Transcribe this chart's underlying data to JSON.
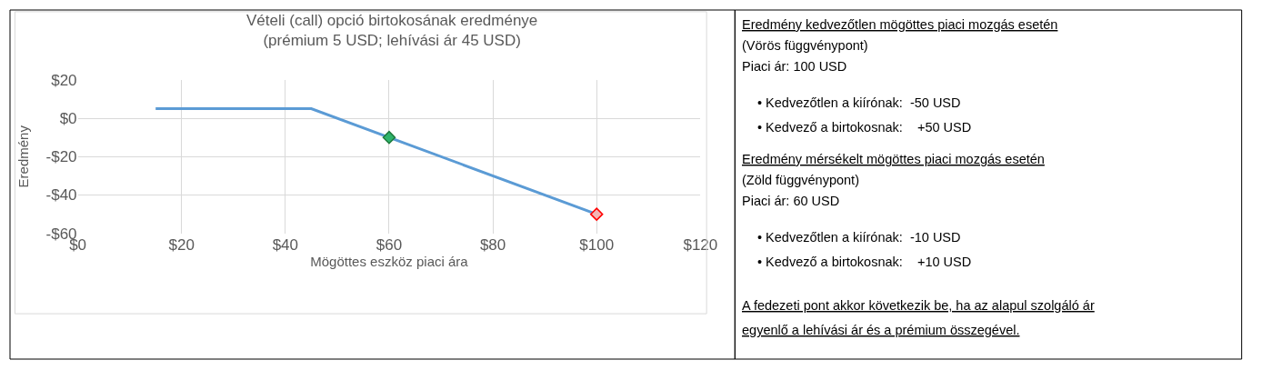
{
  "chart_data": [
    {
      "type": "line",
      "title": "Vételi (call) opció birtokosának eredménye\n(prémium 5 USD; lehívási ár 45 USD)",
      "xlabel": "Mögöttes eszköz piaci ára",
      "ylabel": "Eredmény",
      "xlim": [
        0,
        120
      ],
      "xticks": [
        {
          "value": 0,
          "label": "$0"
        },
        {
          "value": 20,
          "label": "$20"
        },
        {
          "value": 40,
          "label": "$40"
        },
        {
          "value": 60,
          "label": "$60"
        },
        {
          "value": 80,
          "label": "$80"
        },
        {
          "value": 100,
          "label": "$100"
        },
        {
          "value": 120,
          "label": "$120"
        }
      ],
      "ylim": [
        -60,
        20
      ],
      "yticks": [
        {
          "value": -60,
          "label": "-$60"
        },
        {
          "value": -40,
          "label": "-$40"
        },
        {
          "value": -20,
          "label": "-$20"
        },
        {
          "value": 0,
          "label": "$0"
        },
        {
          "value": 20,
          "label": "$20"
        }
      ],
      "grid": true,
      "series": [
        {
          "type": "line",
          "color": "#5b9bd5",
          "x": [
            15,
            45,
            100
          ],
          "values": [
            5,
            5,
            -50
          ],
          "marker": "none"
        },
        {
          "type": "scatter",
          "colors": [
            "#2fb36b",
            "#f4b4b4"
          ],
          "x": [
            60,
            100
          ],
          "values": [
            -10,
            -50
          ],
          "marker": "diamond"
        }
      ]
    },
    {
      "type": "other",
      "annotations": [
        "Eredmény kedvezőtlen mögöttes piaci mozgás esetén",
        "(Vörös függvénypont)",
        "Piaci ár: 100 USD",
        "• Kedvezőtlen a kiírónak:  -50 USD",
        "• Kedvező a birtokosnak:    +50 USD",
        "Eredmény mérsékelt mögöttes piaci mozgás esetén",
        "(Zöld függvénypont)",
        "Piaci ár: 60 USD",
        "• Kedvezőtlen a kiírónak:  -10 USD",
        "• Kedvező a birtokosnak:    +10 USD",
        "A fedezeti pont akkor következik be, ha az alapul szolgáló ár",
        "egyenlő a lehívási ár és a prémium összegével."
      ]
    }
  ]
}
